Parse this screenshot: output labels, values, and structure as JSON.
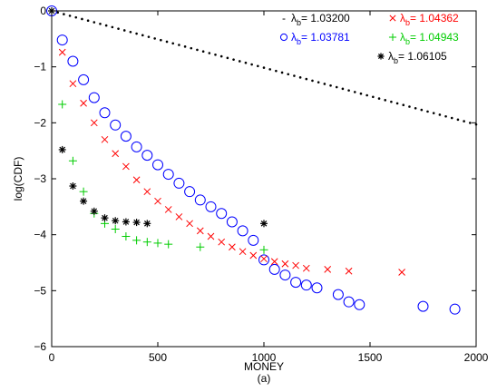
{
  "chart_data": {
    "type": "scatter",
    "xlabel": "MONEY",
    "ylabel": "log(CDF)",
    "caption": "(a)",
    "xlim": [
      0,
      2000
    ],
    "ylim": [
      -6,
      0
    ],
    "xticks": [
      0,
      500,
      1000,
      1500,
      2000
    ],
    "yticks": [
      0,
      -1,
      -2,
      -3,
      -4,
      -5,
      -6
    ],
    "xtick_labels": [
      "0",
      "500",
      "1000",
      "1500",
      "2000"
    ],
    "ytick_labels": [
      "0",
      "−1",
      "−2",
      "−3",
      "−4",
      "−5",
      "−6"
    ],
    "legend_placement": "top-right",
    "series": [
      {
        "name": "λb= 1.03200",
        "marker": "-",
        "color": "#000000",
        "style": "dotted",
        "x": [
          0,
          2000
        ],
        "y": [
          0,
          -2.03
        ]
      },
      {
        "name": "λb= 1.03781",
        "marker": "o",
        "color": "#0000ff",
        "x": [
          0,
          50,
          100,
          150,
          200,
          250,
          300,
          350,
          400,
          450,
          500,
          550,
          600,
          650,
          700,
          750,
          800,
          850,
          900,
          950,
          1000,
          1050,
          1100,
          1150,
          1200,
          1250,
          1350,
          1400,
          1450,
          1750,
          1900
        ],
        "y": [
          0,
          -0.52,
          -0.9,
          -1.23,
          -1.55,
          -1.82,
          -2.04,
          -2.24,
          -2.43,
          -2.58,
          -2.75,
          -2.92,
          -3.08,
          -3.23,
          -3.38,
          -3.5,
          -3.62,
          -3.77,
          -3.93,
          -4.1,
          -4.45,
          -4.62,
          -4.72,
          -4.85,
          -4.9,
          -4.95,
          -5.07,
          -5.2,
          -5.25,
          -5.28,
          -5.33
        ]
      },
      {
        "name": "λb= 1.04362",
        "marker": "x",
        "color": "#ff0000",
        "x": [
          50,
          100,
          150,
          200,
          250,
          300,
          350,
          400,
          450,
          500,
          550,
          600,
          650,
          700,
          750,
          800,
          850,
          900,
          950,
          1000,
          1050,
          1100,
          1150,
          1200,
          1300,
          1400,
          1650
        ],
        "y": [
          -0.74,
          -1.3,
          -1.65,
          -2.0,
          -2.3,
          -2.55,
          -2.78,
          -3.02,
          -3.23,
          -3.4,
          -3.55,
          -3.68,
          -3.8,
          -3.93,
          -4.03,
          -4.13,
          -4.22,
          -4.3,
          -4.37,
          -4.43,
          -4.48,
          -4.52,
          -4.55,
          -4.6,
          -4.62,
          -4.65,
          -4.67
        ]
      },
      {
        "name": "λb= 1.04943",
        "marker": "+",
        "color": "#00cc00",
        "x": [
          50,
          100,
          150,
          200,
          250,
          300,
          350,
          400,
          450,
          500,
          550,
          700,
          1000
        ],
        "y": [
          -1.67,
          -2.68,
          -3.23,
          -3.62,
          -3.8,
          -3.9,
          -4.03,
          -4.1,
          -4.13,
          -4.15,
          -4.17,
          -4.22,
          -4.27
        ]
      },
      {
        "name": "λb= 1.06105",
        "marker": "*",
        "color": "#000000",
        "x": [
          0,
          50,
          100,
          150,
          200,
          250,
          300,
          350,
          400,
          450,
          1000
        ],
        "y": [
          0,
          -2.48,
          -3.13,
          -3.4,
          -3.58,
          -3.7,
          -3.75,
          -3.77,
          -3.78,
          -3.8,
          -3.8
        ]
      }
    ],
    "legend": [
      {
        "marker": "-",
        "symbol": "λ",
        "sub": "b",
        "value": "= 1.03200",
        "color": "#000000"
      },
      {
        "marker": "x",
        "symbol": "λ",
        "sub": "b",
        "value": "= 1.04362",
        "color": "#ff0000"
      },
      {
        "marker": "o",
        "symbol": "λ",
        "sub": "b",
        "value": "= 1.03781",
        "color": "#0000ff"
      },
      {
        "marker": "+",
        "symbol": "λ",
        "sub": "b",
        "value": "= 1.04943",
        "color": "#00cc00"
      },
      {
        "marker": "*",
        "symbol": "λ",
        "sub": "b",
        "value": "= 1.06105",
        "color": "#000000"
      }
    ]
  }
}
